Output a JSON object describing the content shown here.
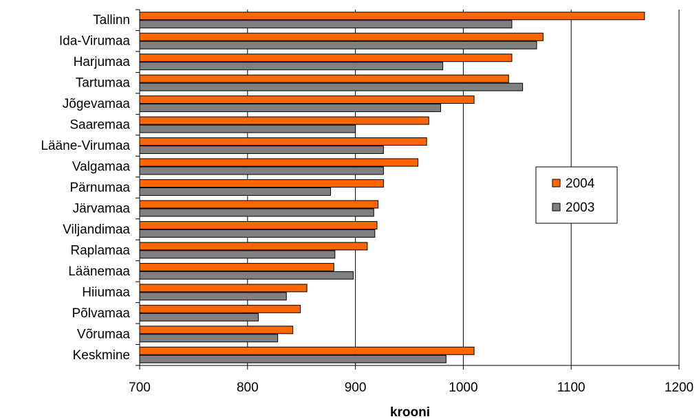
{
  "chart_data": {
    "type": "bar",
    "orientation": "horizontal",
    "categories": [
      "Tallinn",
      "Ida-Virumaa",
      "Harjumaa",
      "Tartumaa",
      "Jõgevamaa",
      "Saaremaa",
      "Lääne-Virumaa",
      "Valgamaa",
      "Pärnumaa",
      "Järvamaa",
      "Viljandimaa",
      "Raplamaa",
      "Läänemaa",
      "Hiiumaa",
      "Põlvamaa",
      "Võrumaa",
      "Keskmine"
    ],
    "series": [
      {
        "name": "2004",
        "color": "#ff6600",
        "values": [
          1168,
          1074,
          1045,
          1042,
          1010,
          968,
          966,
          958,
          926,
          921,
          920,
          911,
          880,
          855,
          849,
          842,
          1010
        ]
      },
      {
        "name": "2003",
        "color": "#808080",
        "values": [
          1045,
          1068,
          981,
          1055,
          979,
          900,
          926,
          926,
          877,
          917,
          918,
          881,
          898,
          836,
          810,
          828,
          984
        ]
      }
    ],
    "xlabel": "krooni",
    "ylabel": "",
    "xlim": [
      700,
      1200
    ],
    "xticks": [
      700,
      800,
      900,
      1000,
      1100,
      1200
    ],
    "grid": true,
    "legend_position": "right"
  }
}
